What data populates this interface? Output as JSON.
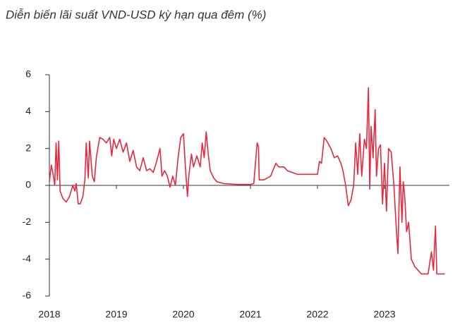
{
  "chart_data": {
    "type": "line",
    "title": "Diễn biến lãi suất VND-USD kỳ hạn qua đêm (%)",
    "x": [
      2018.0,
      2018.03,
      2018.06,
      2018.08,
      2018.1,
      2018.12,
      2018.14,
      2018.16,
      2018.2,
      2018.25,
      2018.3,
      2018.35,
      2018.38,
      2018.4,
      2018.43,
      2018.46,
      2018.5,
      2018.53,
      2018.55,
      2018.58,
      2018.6,
      2018.64,
      2018.67,
      2018.7,
      2018.75,
      2018.8,
      2018.85,
      2018.9,
      2018.93,
      2018.96,
      2019.0,
      2019.05,
      2019.1,
      2019.15,
      2019.2,
      2019.25,
      2019.3,
      2019.35,
      2019.4,
      2019.45,
      2019.5,
      2019.55,
      2019.6,
      2019.65,
      2019.68,
      2019.72,
      2019.76,
      2019.8,
      2019.84,
      2019.88,
      2019.92,
      2019.96,
      2020.0,
      2020.03,
      2020.06,
      2020.08,
      2020.12,
      2020.15,
      2020.2,
      2020.25,
      2020.28,
      2020.31,
      2020.34,
      2020.37,
      2020.4,
      2020.45,
      2020.5,
      2020.6,
      2020.8,
      2021.0,
      2021.05,
      2021.1,
      2021.12,
      2021.13,
      2021.2,
      2021.3,
      2021.38,
      2021.42,
      2021.5,
      2021.55,
      2021.7,
      2021.9,
      2022.0,
      2022.03,
      2022.06,
      2022.1,
      2022.14,
      2022.2,
      2022.25,
      2022.3,
      2022.35,
      2022.38,
      2022.42,
      2022.46,
      2022.5,
      2022.54,
      2022.57,
      2022.6,
      2022.63,
      2022.66,
      2022.7,
      2022.73,
      2022.76,
      2022.78,
      2022.8,
      2022.83,
      2022.86,
      2022.88,
      2022.91,
      2022.94,
      2022.97,
      2023.0,
      2023.03,
      2023.06,
      2023.1,
      2023.14,
      2023.17,
      2023.2,
      2023.23,
      2023.26,
      2023.28,
      2023.3,
      2023.33,
      2023.36,
      2023.4,
      2023.45,
      2023.5,
      2023.55,
      2023.65,
      2023.7,
      2023.73,
      2023.76,
      2023.78,
      2023.85,
      2023.9
    ],
    "series": [
      {
        "name": "VND-USD",
        "color": "#e8283c",
        "values": [
          0.2,
          1.1,
          0.5,
          0.0,
          2.3,
          0.3,
          2.4,
          -0.3,
          -0.7,
          -0.9,
          -0.6,
          0.0,
          -0.3,
          0.1,
          -1.0,
          -1.0,
          -0.6,
          0.3,
          2.3,
          0.4,
          2.4,
          0.5,
          0.2,
          1.5,
          2.6,
          2.5,
          2.3,
          2.6,
          1.6,
          2.5,
          2.0,
          2.5,
          1.8,
          2.3,
          1.3,
          1.9,
          1.0,
          0.8,
          1.5,
          0.8,
          0.9,
          0.7,
          1.3,
          2.0,
          0.5,
          0.8,
          0.5,
          -0.1,
          0.5,
          0.0,
          1.5,
          2.6,
          2.8,
          1.0,
          -0.6,
          0.5,
          1.7,
          1.0,
          1.6,
          1.0,
          2.3,
          1.5,
          2.9,
          1.7,
          0.8,
          0.4,
          0.2,
          0.1,
          0.05,
          0.05,
          0.1,
          2.3,
          2.1,
          0.3,
          0.3,
          0.5,
          1.2,
          1.0,
          1.0,
          0.8,
          0.6,
          0.6,
          0.6,
          1.3,
          1.2,
          2.6,
          2.4,
          2.0,
          1.5,
          1.6,
          1.2,
          0.8,
          0.0,
          -1.1,
          -0.8,
          0.0,
          2.3,
          0.6,
          2.8,
          0.5,
          2.5,
          2.0,
          5.3,
          -0.2,
          3.2,
          1.5,
          4.1,
          0.5,
          2.0,
          2.2,
          -1.0,
          1.2,
          -1.4,
          2.0,
          1.8,
          0.0,
          -2.0,
          -3.7,
          1.0,
          -2.0,
          0.2,
          -0.5,
          -2.5,
          -2.0,
          -4.0,
          -4.4,
          -4.6,
          -4.8,
          -4.8,
          -3.6,
          -4.6,
          -2.2,
          -4.8,
          -4.8,
          -4.8
        ]
      }
    ],
    "xlim": [
      2018,
      2024
    ],
    "xticks": [
      2018,
      2019,
      2020,
      2021,
      2022,
      2023
    ],
    "ylim": [
      -6,
      6
    ],
    "yticks": [
      -6,
      -4,
      -2,
      0,
      2,
      4,
      6
    ]
  }
}
